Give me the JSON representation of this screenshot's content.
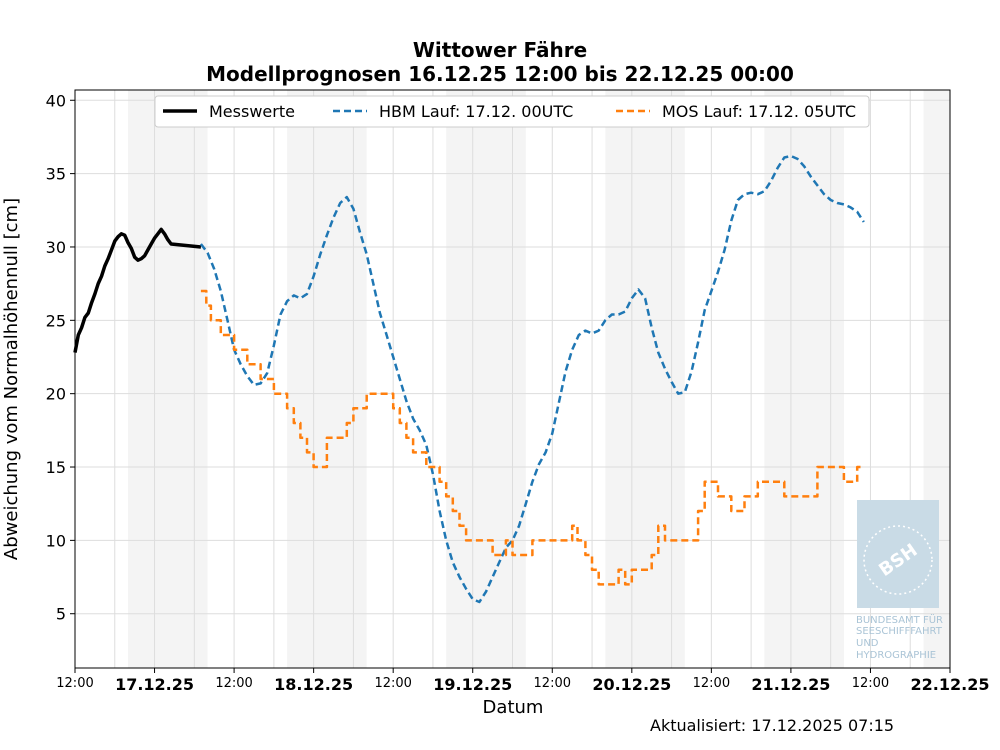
{
  "chart_data": {
    "type": "line",
    "title": "Wittower Fähre",
    "subtitle": "Modellprognosen 16.12.25 12:00 bis 22.12.25 00:00",
    "xlabel": "Datum",
    "ylabel": "Abweichung vom Normalhöhennull [cm]",
    "x_range_hours": [
      0,
      132
    ],
    "ylim": [
      1.3,
      40.7
    ],
    "y_ticks": [
      5,
      10,
      15,
      20,
      25,
      30,
      35,
      40
    ],
    "x_ticks": [
      {
        "h": 0,
        "label": "12:00",
        "bold": false
      },
      {
        "h": 12,
        "label": "17.12.25",
        "bold": true
      },
      {
        "h": 24,
        "label": "12:00",
        "bold": false
      },
      {
        "h": 36,
        "label": "18.12.25",
        "bold": true
      },
      {
        "h": 48,
        "label": "12:00",
        "bold": false
      },
      {
        "h": 60,
        "label": "19.12.25",
        "bold": true
      },
      {
        "h": 72,
        "label": "12:00",
        "bold": false
      },
      {
        "h": 84,
        "label": "20.12.25",
        "bold": true
      },
      {
        "h": 96,
        "label": "12:00",
        "bold": false
      },
      {
        "h": 108,
        "label": "21.12.25",
        "bold": true
      },
      {
        "h": 120,
        "label": "12:00",
        "bold": false
      },
      {
        "h": 132,
        "label": "22.12.25",
        "bold": true
      }
    ],
    "x_unit_note": "hours after 16.12.25 12:00",
    "night_bands_hours": [
      [
        8,
        20
      ],
      [
        32,
        44
      ],
      [
        56,
        68
      ],
      [
        80,
        92
      ],
      [
        104,
        116
      ],
      [
        128,
        132
      ]
    ],
    "grid": true,
    "legend_placement": "top-center",
    "series": [
      {
        "name": "Messwerte",
        "color": "#000000",
        "style": "solid",
        "points": [
          [
            0,
            22.8
          ],
          [
            0.5,
            24
          ],
          [
            1,
            24.5
          ],
          [
            1.5,
            25.2
          ],
          [
            2,
            25.5
          ],
          [
            2.5,
            26.2
          ],
          [
            3,
            26.8
          ],
          [
            3.5,
            27.5
          ],
          [
            4,
            28
          ],
          [
            4.5,
            28.7
          ],
          [
            5,
            29.2
          ],
          [
            5.5,
            29.8
          ],
          [
            6,
            30.4
          ],
          [
            6.5,
            30.7
          ],
          [
            7,
            30.9
          ],
          [
            7.5,
            30.8
          ],
          [
            8,
            30.3
          ],
          [
            8.5,
            29.9
          ],
          [
            9,
            29.3
          ],
          [
            9.5,
            29.1
          ],
          [
            10,
            29.2
          ],
          [
            10.5,
            29.4
          ],
          [
            11,
            29.8
          ],
          [
            11.5,
            30.2
          ],
          [
            12,
            30.6
          ],
          [
            12.5,
            30.9
          ],
          [
            13,
            31.2
          ],
          [
            13.5,
            30.9
          ],
          [
            14,
            30.5
          ],
          [
            14.5,
            30.2
          ],
          [
            19,
            30
          ]
        ]
      },
      {
        "name": "HBM Lauf: 17.12. 00UTC",
        "color": "#1f77b4",
        "style": "dashed",
        "points": [
          [
            19,
            30.2
          ],
          [
            20,
            29.6
          ],
          [
            21,
            28.5
          ],
          [
            22,
            27
          ],
          [
            23,
            25
          ],
          [
            24,
            23
          ],
          [
            25,
            22
          ],
          [
            26,
            21.2
          ],
          [
            27,
            20.6
          ],
          [
            28,
            20.7
          ],
          [
            29,
            21.4
          ],
          [
            30,
            23.3
          ],
          [
            31,
            25.4
          ],
          [
            32,
            26.3
          ],
          [
            33,
            26.7
          ],
          [
            34,
            26.5
          ],
          [
            35,
            26.8
          ],
          [
            36,
            28
          ],
          [
            37,
            29.5
          ],
          [
            38,
            30.8
          ],
          [
            39,
            32
          ],
          [
            40,
            33
          ],
          [
            41,
            33.4
          ],
          [
            42,
            32.6
          ],
          [
            43,
            31
          ],
          [
            44,
            29.5
          ],
          [
            45,
            27.5
          ],
          [
            46,
            25.5
          ],
          [
            47,
            24
          ],
          [
            48,
            22.5
          ],
          [
            49,
            21
          ],
          [
            50,
            19.5
          ],
          [
            51,
            18.3
          ],
          [
            52,
            17.5
          ],
          [
            53,
            16.5
          ],
          [
            54,
            14.5
          ],
          [
            55,
            12
          ],
          [
            56,
            10
          ],
          [
            57,
            8.5
          ],
          [
            58,
            7.5
          ],
          [
            59,
            6.7
          ],
          [
            60,
            6
          ],
          [
            61,
            5.8
          ],
          [
            62,
            6.5
          ],
          [
            63,
            7.5
          ],
          [
            64,
            8.5
          ],
          [
            65,
            9.5
          ],
          [
            66,
            10
          ],
          [
            67,
            11
          ],
          [
            68,
            12.5
          ],
          [
            69,
            14
          ],
          [
            70,
            15.2
          ],
          [
            71,
            16
          ],
          [
            72,
            17.3
          ],
          [
            73,
            19.4
          ],
          [
            74,
            21.5
          ],
          [
            75,
            23
          ],
          [
            76,
            24
          ],
          [
            77,
            24.3
          ],
          [
            78,
            24.1
          ],
          [
            79,
            24.3
          ],
          [
            80,
            25
          ],
          [
            81,
            25.4
          ],
          [
            82,
            25.4
          ],
          [
            83,
            25.6
          ],
          [
            84,
            26.5
          ],
          [
            85,
            27.1
          ],
          [
            86,
            26.5
          ],
          [
            87,
            24.5
          ],
          [
            88,
            22.8
          ],
          [
            89,
            21.7
          ],
          [
            90,
            20.8
          ],
          [
            91,
            20
          ],
          [
            92,
            20.1
          ],
          [
            93,
            21.5
          ],
          [
            94,
            23.5
          ],
          [
            95,
            25.7
          ],
          [
            96,
            27
          ],
          [
            97,
            28.3
          ],
          [
            98,
            29.8
          ],
          [
            99,
            31.8
          ],
          [
            100,
            33.2
          ],
          [
            101,
            33.6
          ],
          [
            102,
            33.7
          ],
          [
            103,
            33.6
          ],
          [
            104,
            33.8
          ],
          [
            105,
            34.5
          ],
          [
            106,
            35.4
          ],
          [
            107,
            36.1
          ],
          [
            108,
            36.2
          ],
          [
            109,
            36
          ],
          [
            110,
            35.5
          ],
          [
            111,
            34.8
          ],
          [
            112,
            34.2
          ],
          [
            113,
            33.6
          ],
          [
            114,
            33.2
          ],
          [
            115,
            33
          ],
          [
            116,
            32.9
          ],
          [
            117,
            32.7
          ],
          [
            118,
            32.4
          ],
          [
            119,
            31.7
          ]
        ]
      },
      {
        "name": "MOS Lauf: 17.12. 05UTC",
        "color": "#ff7f0e",
        "style": "dashed",
        "points": [
          [
            19,
            27
          ],
          [
            19.8,
            27
          ],
          [
            19.8,
            26
          ],
          [
            20.5,
            26
          ],
          [
            20.5,
            25
          ],
          [
            22,
            25
          ],
          [
            22,
            24
          ],
          [
            24,
            24
          ],
          [
            24,
            23
          ],
          [
            26,
            23
          ],
          [
            26,
            22
          ],
          [
            28,
            22
          ],
          [
            28,
            21
          ],
          [
            30,
            21
          ],
          [
            30,
            20
          ],
          [
            32,
            20
          ],
          [
            32,
            19
          ],
          [
            33,
            19
          ],
          [
            33,
            18
          ],
          [
            34,
            18
          ],
          [
            34,
            17
          ],
          [
            35,
            17
          ],
          [
            35,
            16
          ],
          [
            36,
            16
          ],
          [
            36,
            15
          ],
          [
            38,
            15
          ],
          [
            38,
            17
          ],
          [
            41,
            17
          ],
          [
            41,
            18
          ],
          [
            42,
            18
          ],
          [
            42,
            19
          ],
          [
            44,
            19
          ],
          [
            44,
            20
          ],
          [
            48,
            20
          ],
          [
            48,
            19
          ],
          [
            49,
            19
          ],
          [
            49,
            18
          ],
          [
            50,
            18
          ],
          [
            50,
            17
          ],
          [
            51,
            17
          ],
          [
            51,
            16
          ],
          [
            53,
            16
          ],
          [
            53,
            15
          ],
          [
            55,
            15
          ],
          [
            55,
            14
          ],
          [
            56,
            14
          ],
          [
            56,
            13
          ],
          [
            57,
            13
          ],
          [
            57,
            12
          ],
          [
            58,
            12
          ],
          [
            58,
            11
          ],
          [
            59,
            11
          ],
          [
            59,
            10
          ],
          [
            63,
            10
          ],
          [
            63,
            9
          ],
          [
            65,
            9
          ],
          [
            65,
            10
          ],
          [
            66,
            10
          ],
          [
            66,
            9
          ],
          [
            69,
            9
          ],
          [
            69,
            10
          ],
          [
            75,
            10
          ],
          [
            75,
            11
          ],
          [
            75.8,
            11
          ],
          [
            75.8,
            10
          ],
          [
            77,
            10
          ],
          [
            77,
            9
          ],
          [
            78,
            9
          ],
          [
            78,
            8
          ],
          [
            79,
            8
          ],
          [
            79,
            7
          ],
          [
            82,
            7
          ],
          [
            82,
            8
          ],
          [
            83,
            8
          ],
          [
            83,
            7
          ],
          [
            84,
            7
          ],
          [
            84,
            8
          ],
          [
            87,
            8
          ],
          [
            87,
            9
          ],
          [
            88,
            9
          ],
          [
            88,
            11
          ],
          [
            89,
            11
          ],
          [
            89,
            10
          ],
          [
            94,
            10
          ],
          [
            94,
            12
          ],
          [
            95,
            12
          ],
          [
            95,
            14
          ],
          [
            97,
            14
          ],
          [
            97,
            13
          ],
          [
            99,
            13
          ],
          [
            99,
            12
          ],
          [
            101,
            12
          ],
          [
            101,
            13
          ],
          [
            103,
            13
          ],
          [
            103,
            14
          ],
          [
            107,
            14
          ],
          [
            107,
            13
          ],
          [
            112,
            13
          ],
          [
            112,
            15
          ],
          [
            116,
            15
          ],
          [
            116,
            14
          ],
          [
            118,
            14
          ],
          [
            118,
            15
          ],
          [
            119,
            15
          ]
        ]
      }
    ]
  },
  "updated": "Aktualisiert: 17.12.2025 07:15",
  "watermark": {
    "seal_text": "BSH",
    "agency_lines": [
      "BUNDESAMT FÜR",
      "SEESCHIFFFAHRT",
      "UND",
      "HYDROGRAPHIE"
    ]
  }
}
